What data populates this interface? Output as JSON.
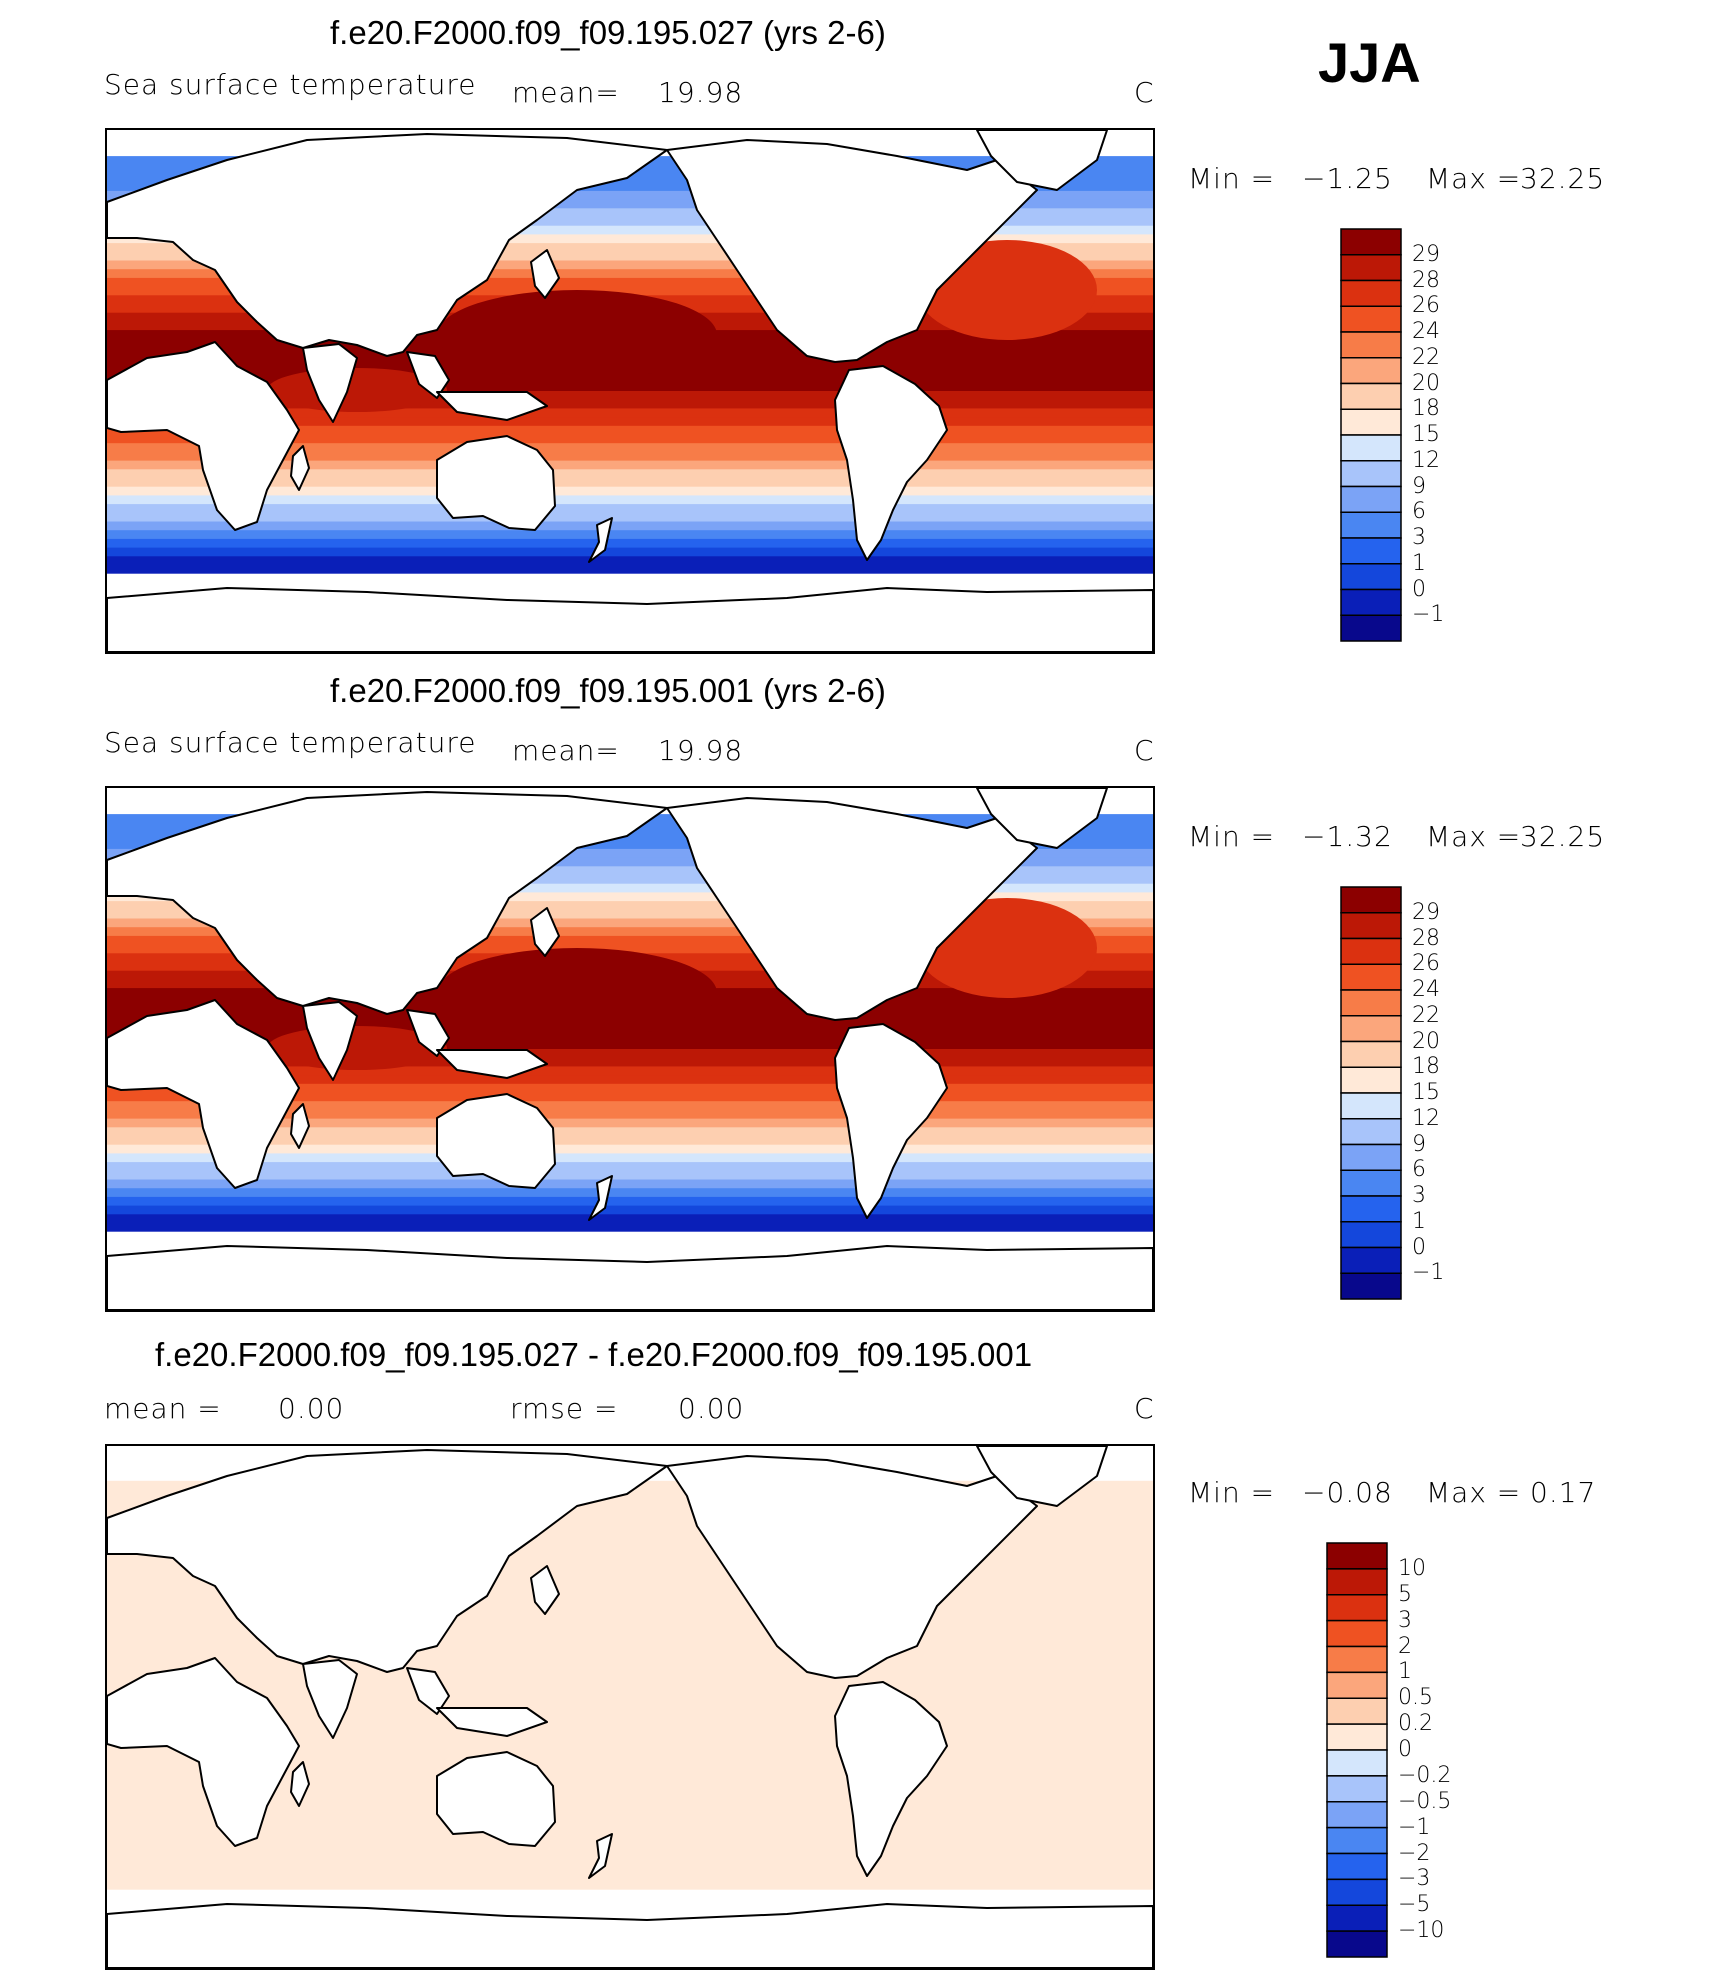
{
  "season": "JJA",
  "colors": {
    "sst_levels": [
      "#08088c",
      "#0a1fb8",
      "#1447dc",
      "#2563ee",
      "#4a86f2",
      "#7ba3f6",
      "#a8c4fa",
      "#d4e6fc",
      "#ffe9d8",
      "#fdcfb0",
      "#fba67c",
      "#f77c48",
      "#ef5222",
      "#db3110",
      "#bc1806",
      "#8c0000"
    ],
    "diff_levels": [
      "#08088c",
      "#0a1fb8",
      "#1447dc",
      "#2563ee",
      "#4a86f2",
      "#7ba3f6",
      "#a8c4fa",
      "#d4e6fc",
      "#ffe9d8",
      "#fdcfb0",
      "#fba67c",
      "#f77c48",
      "#ef5222",
      "#db3110",
      "#bc1806",
      "#8c0000"
    ]
  },
  "chart_data": [
    {
      "type": "heatmap",
      "title": "f.e20.F2000.f09_f09.195.027 (yrs 2-6)",
      "variable": "Sea surface temperature",
      "mean_label": "mean=",
      "mean_value": "19.98",
      "units": "C",
      "min_label": "Min  =",
      "min_value": "−1.25",
      "max_label": "Max  =",
      "max_value": "32.25",
      "colorbar_levels": [
        "29",
        "28",
        "26",
        "24",
        "22",
        "20",
        "18",
        "15",
        "12",
        "9",
        "6",
        "3",
        "1",
        "0",
        "−1"
      ]
    },
    {
      "type": "heatmap",
      "title": "f.e20.F2000.f09_f09.195.001 (yrs 2-6)",
      "variable": "Sea surface temperature",
      "mean_label": "mean=",
      "mean_value": "19.98",
      "units": "C",
      "min_label": "Min  =",
      "min_value": "−1.32",
      "max_label": "Max  =",
      "max_value": "32.25",
      "colorbar_levels": [
        "29",
        "28",
        "26",
        "24",
        "22",
        "20",
        "18",
        "15",
        "12",
        "9",
        "6",
        "3",
        "1",
        "0",
        "−1"
      ]
    },
    {
      "type": "heatmap",
      "title": "f.e20.F2000.f09_f09.195.027 - f.e20.F2000.f09_f09.195.001",
      "mean_label": "mean  =",
      "mean_value": "0.00",
      "rmse_label": "rmse  =",
      "rmse_value": "0.00",
      "units": "C",
      "min_label": "Min  =",
      "min_value": "−0.08",
      "max_label": "Max  =",
      "max_value": "0.17",
      "colorbar_levels": [
        "10",
        "5",
        "3",
        "2",
        "1",
        "0.5",
        "0.2",
        "0",
        "−0.2",
        "−0.5",
        "−1",
        "−2",
        "−3",
        "−5",
        "−10"
      ]
    }
  ]
}
